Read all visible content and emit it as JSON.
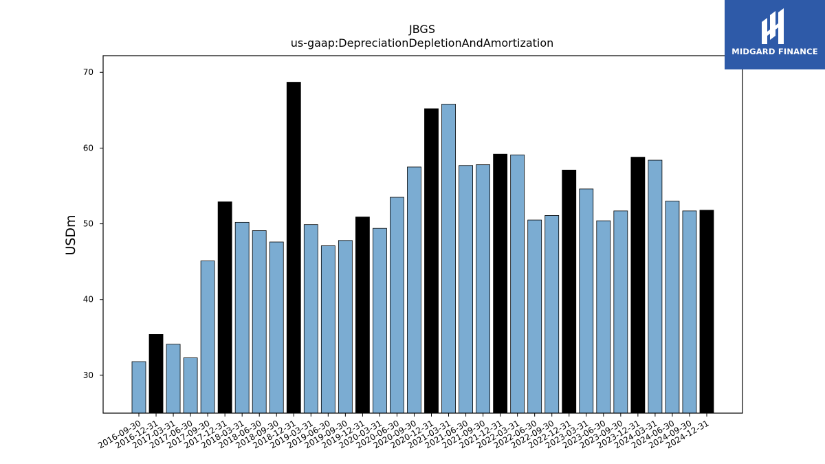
{
  "logo": {
    "name": "MIDGARD FINANCE",
    "color": "#2e5aa8"
  },
  "chart_data": {
    "type": "bar",
    "title": "JBGS",
    "subtitle": "us-gaap:DepreciationDepletionAndAmortization",
    "xlabel": "",
    "ylabel": "USDm",
    "ylim": [
      25,
      72.2
    ],
    "yticks": [
      30,
      40,
      50,
      60,
      70
    ],
    "grid": false,
    "colors": {
      "quarter": "#7bacd2",
      "year_end": "#000000",
      "edge": "#000000"
    },
    "categories": [
      "2016-09-30",
      "2016-12-31",
      "2017-03-31",
      "2017-06-30",
      "2017-09-30",
      "2017-12-31",
      "2018-03-31",
      "2018-06-30",
      "2018-09-30",
      "2018-12-31",
      "2019-03-31",
      "2019-06-30",
      "2019-09-30",
      "2019-12-31",
      "2020-03-31",
      "2020-06-30",
      "2020-09-30",
      "2020-12-31",
      "2021-03-31",
      "2021-06-30",
      "2021-09-30",
      "2021-12-31",
      "2022-03-31",
      "2022-06-30",
      "2022-09-30",
      "2022-12-31",
      "2023-03-31",
      "2023-06-30",
      "2023-09-30",
      "2023-12-31",
      "2024-03-31",
      "2024-06-30",
      "2024-09-30",
      "2024-12-31"
    ],
    "values": [
      31.8,
      35.4,
      34.1,
      32.3,
      45.1,
      52.9,
      50.2,
      49.1,
      47.6,
      68.7,
      49.9,
      47.1,
      47.8,
      50.9,
      49.4,
      53.5,
      57.5,
      65.2,
      65.8,
      57.7,
      57.8,
      59.2,
      59.1,
      50.5,
      51.1,
      57.1,
      54.6,
      50.4,
      51.7,
      58.8,
      58.4,
      53.0,
      51.7,
      51.8
    ],
    "year_end_flags": [
      false,
      true,
      false,
      false,
      false,
      true,
      false,
      false,
      false,
      true,
      false,
      false,
      false,
      true,
      false,
      false,
      false,
      true,
      false,
      false,
      false,
      true,
      false,
      false,
      false,
      true,
      false,
      false,
      false,
      true,
      false,
      false,
      false,
      true
    ]
  }
}
